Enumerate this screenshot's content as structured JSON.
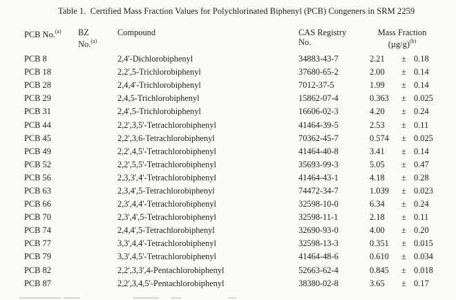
{
  "table": {
    "title": "Table 1.  Certified Mass Fraction Values for Polychlorinated Biphenyl (PCB) Congeners in SRM 2259",
    "plus_minus": "±",
    "header": {
      "pcb_no": {
        "text": "PCB No.",
        "sup": "(a)"
      },
      "bz_no": {
        "line1": "BZ",
        "line2": "No.",
        "sup": "(a)"
      },
      "compound": "Compound",
      "cas": {
        "line1": "CAS Registry",
        "line2": "No."
      },
      "mass_fraction": {
        "line1": "Mass Fraction",
        "line2": "(µg/g)",
        "sup": "(b)"
      }
    },
    "rows": [
      {
        "pcb_no": "PCB 8",
        "bz_no": "",
        "compound": "2,4'-Dichlorobiphenyl",
        "cas": "34883-43-7",
        "value": "2.21",
        "uncertainty": "0.18"
      },
      {
        "pcb_no": "PCB 18",
        "bz_no": "",
        "compound": "2,2',5-Trichlorobiphenyl",
        "cas": "37680-65-2",
        "value": "2.00",
        "uncertainty": "0.14"
      },
      {
        "pcb_no": "PCB 28",
        "bz_no": "",
        "compound": "2,4,4'-Trichlorobiphenyl",
        "cas": "7012-37-5",
        "value": "1.99",
        "uncertainty": "0.14"
      },
      {
        "pcb_no": "PCB 29",
        "bz_no": "",
        "compound": "2,4,5-Trichlorobiphenyl",
        "cas": "15862-07-4",
        "value": "0.363",
        "uncertainty": "0.025"
      },
      {
        "pcb_no": "PCB 31",
        "bz_no": "",
        "compound": "2,4',5-Trichlorobiphenyl",
        "cas": "16606-02-3",
        "value": "4.20",
        "uncertainty": "0.24"
      },
      {
        "pcb_no": "PCB 44",
        "bz_no": "",
        "compound": "2,2',3,5'-Tetrachlorobiphenyl",
        "cas": "41464-39-5",
        "value": "2.53",
        "uncertainty": "0.11"
      },
      {
        "pcb_no": "PCB 45",
        "bz_no": "",
        "compound": "2,2',3,6-Tetrachlorobiphenyl",
        "cas": "70362-45-7",
        "value": "0.574",
        "uncertainty": "0.025"
      },
      {
        "pcb_no": "PCB 49",
        "bz_no": "",
        "compound": "2,2',4,5'-Tetrachlorobiphenyl",
        "cas": "41464-40-8",
        "value": "3.41",
        "uncertainty": "0.14"
      },
      {
        "pcb_no": "PCB 52",
        "bz_no": "",
        "compound": "2,2',5,5'-Tetrachlorobiphenyl",
        "cas": "35693-99-3",
        "value": "5.05",
        "uncertainty": "0.47"
      },
      {
        "pcb_no": "PCB 56",
        "bz_no": "",
        "compound": "2,3,3',4'-Tetrachlorobiphenyl",
        "cas": "41464-43-1",
        "value": "4.18",
        "uncertainty": "0.28"
      },
      {
        "pcb_no": "PCB 63",
        "bz_no": "",
        "compound": "2,3,4',5-Tetrachlorobiphenyl",
        "cas": "74472-34-7",
        "value": "1.039",
        "uncertainty": "0.023"
      },
      {
        "pcb_no": "PCB 66",
        "bz_no": "",
        "compound": "2,3',4,4'-Tetrachlorobiphenyl",
        "cas": "32598-10-0",
        "value": "6.34",
        "uncertainty": "0.24"
      },
      {
        "pcb_no": "PCB 70",
        "bz_no": "",
        "compound": "2,3',4',5-Tetrachlorobiphenyl",
        "cas": "32598-11-1",
        "value": "2.18",
        "uncertainty": "0.11"
      },
      {
        "pcb_no": "PCB 74",
        "bz_no": "",
        "compound": "2,4,4',5-Tetrachlorobiphenyl",
        "cas": "32690-93-0",
        "value": "4.00",
        "uncertainty": "0.20"
      },
      {
        "pcb_no": "PCB 77",
        "bz_no": "",
        "compound": "3,3',4,4'-Tetrachlorobiphenyl",
        "cas": "32598-13-3",
        "value": "0.351",
        "uncertainty": "0.015"
      },
      {
        "pcb_no": "PCB 79",
        "bz_no": "",
        "compound": "3,3',4,5'-Tetrachlorobiphenyl",
        "cas": "41464-48-6",
        "value": "0.610",
        "uncertainty": "0.034"
      },
      {
        "pcb_no": "PCB 82",
        "bz_no": "",
        "compound": "2,2',3,3',4-Pentachlorobiphenyl",
        "cas": "52663-62-4",
        "value": "0.845",
        "uncertainty": "0.018"
      },
      {
        "pcb_no": "PCB 87",
        "bz_no": "",
        "compound": "2,2',3,4,5'-Pentachlorobiphenyl",
        "cas": "38380-02-8",
        "value": "3.65",
        "uncertainty": "0.17"
      }
    ]
  }
}
